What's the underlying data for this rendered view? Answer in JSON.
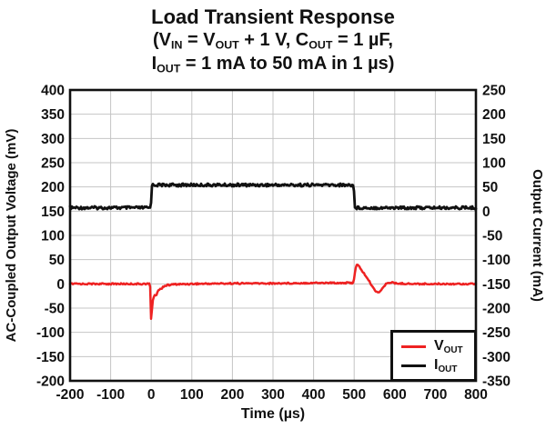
{
  "title": {
    "line1": "Load Transient Response",
    "line2_segments": [
      [
        "t",
        "(V"
      ],
      [
        "sub",
        "IN"
      ],
      [
        "t",
        " = V"
      ],
      [
        "sub",
        "OUT"
      ],
      [
        "t",
        " + 1 V, C"
      ],
      [
        "sub",
        "OUT"
      ],
      [
        "t",
        " = 1 µF,"
      ]
    ],
    "line3_segments": [
      [
        "t",
        "I"
      ],
      [
        "sub",
        "OUT"
      ],
      [
        "t",
        " = 1 mA to 50 mA in 1 µs)"
      ]
    ]
  },
  "chart_data": {
    "type": "line",
    "title": "Load Transient Response (VIN = VOUT + 1 V, COUT = 1 µF, IOUT = 1 mA to 50 mA in 1 µs)",
    "grid": true,
    "grid_color": "#c4c4c4",
    "border_color": "#111111",
    "x_axis": {
      "label": "Time (µs)",
      "min": -200,
      "max": 800,
      "ticks": [
        -200,
        -100,
        0,
        100,
        200,
        300,
        400,
        500,
        600,
        700,
        800
      ]
    },
    "y_left": {
      "label": "AC-Coupled Output Voltage (mV)",
      "min": -200,
      "max": 400,
      "ticks": [
        400,
        350,
        300,
        250,
        200,
        150,
        100,
        50,
        0,
        -50,
        -100,
        -150,
        -200
      ]
    },
    "y_right": {
      "label": "Output Current (mA)",
      "min": -350,
      "max": 250,
      "ticks": [
        250,
        200,
        150,
        100,
        50,
        0,
        -50,
        -100,
        -150,
        -200,
        -250,
        -300,
        -350
      ]
    },
    "legend": {
      "position": "bottom-right",
      "items": [
        {
          "id": "vout",
          "segments": [
            [
              "t",
              "V"
            ],
            [
              "sub",
              "OUT"
            ]
          ],
          "color": "#ee2222"
        },
        {
          "id": "iout",
          "segments": [
            [
              "t",
              "I"
            ],
            [
              "sub",
              "OUT"
            ]
          ],
          "color": "#111111"
        }
      ]
    },
    "series": [
      {
        "id": "iout",
        "name": "IOUT",
        "axis": "right",
        "unit": "mA",
        "color": "#111111",
        "width": 2.8,
        "noise_amp": 3,
        "points": [
          [
            -200,
            7
          ],
          [
            -1,
            7
          ],
          [
            1,
            54
          ],
          [
            499,
            54
          ],
          [
            501,
            7
          ],
          [
            800,
            7
          ]
        ]
      },
      {
        "id": "vout",
        "name": "VOUT",
        "axis": "left",
        "unit": "mV",
        "color": "#ee2222",
        "width": 2.5,
        "noise_amp": 1.5,
        "points": [
          [
            -200,
            0
          ],
          [
            -100,
            0
          ],
          [
            -20,
            0
          ],
          [
            -3,
            0
          ],
          [
            -1,
            -40
          ],
          [
            0,
            -97
          ],
          [
            1,
            -80
          ],
          [
            2,
            -45
          ],
          [
            5,
            -28
          ],
          [
            9,
            -24
          ],
          [
            13,
            -22
          ],
          [
            16,
            -14
          ],
          [
            20,
            -12
          ],
          [
            25,
            -10
          ],
          [
            30,
            -5
          ],
          [
            38,
            -3
          ],
          [
            55,
            -1
          ],
          [
            100,
            0
          ],
          [
            200,
            1
          ],
          [
            300,
            1
          ],
          [
            400,
            2
          ],
          [
            460,
            2
          ],
          [
            497,
            2
          ],
          [
            500,
            12
          ],
          [
            503,
            30
          ],
          [
            507,
            40
          ],
          [
            512,
            36
          ],
          [
            522,
            24
          ],
          [
            532,
            12
          ],
          [
            541,
            0
          ],
          [
            549,
            -11
          ],
          [
            556,
            -17
          ],
          [
            563,
            -16
          ],
          [
            571,
            -8
          ],
          [
            578,
            -1
          ],
          [
            584,
            3
          ],
          [
            592,
            3
          ],
          [
            600,
            1
          ],
          [
            650,
            0
          ],
          [
            700,
            0
          ],
          [
            800,
            0
          ]
        ]
      }
    ]
  }
}
